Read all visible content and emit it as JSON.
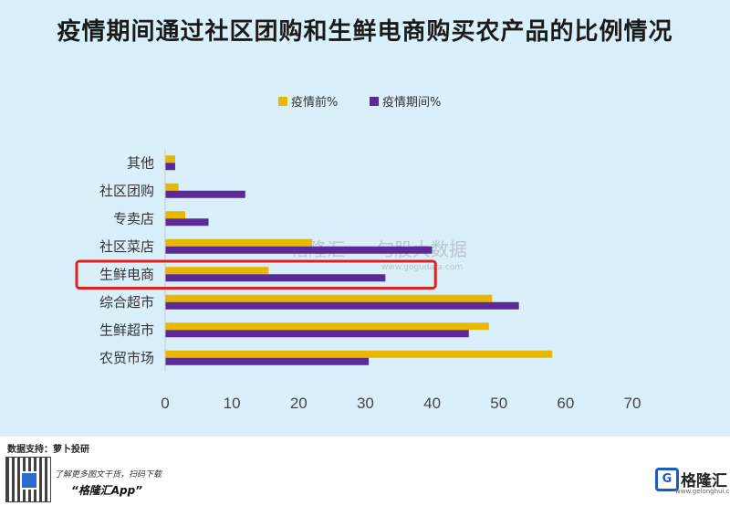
{
  "chart_data": {
    "type": "bar",
    "orientation": "horizontal",
    "title": "疫情期间通过社区团购和生鲜电商购买农产品的比例情况",
    "categories": [
      "其他",
      "社区团购",
      "专卖店",
      "社区菜店",
      "生鲜电商",
      "综合超市",
      "生鲜超市",
      "农贸市场"
    ],
    "series": [
      {
        "name": "疫情前%",
        "color": "#e8b800",
        "values": [
          1.5,
          2,
          3,
          22,
          15.5,
          49,
          48.5,
          58
        ]
      },
      {
        "name": "疫情期间%",
        "color": "#5b2a96",
        "values": [
          1.5,
          12,
          6.5,
          40,
          33,
          53,
          45.5,
          30.5
        ]
      }
    ],
    "xlim": [
      0,
      70
    ],
    "xticks": [
      0,
      10,
      20,
      30,
      40,
      50,
      60,
      70
    ],
    "legend_position": "top",
    "grid": false,
    "highlight": {
      "category": "生鲜电商",
      "color": "#e02020"
    },
    "watermark": {
      "left": "格隆汇",
      "right": "勾股大数据",
      "sub": "www.gogudata.com"
    }
  },
  "footer": {
    "source": "数据支持：萝卜投研",
    "promo": "了解更多图文干货，扫码下载",
    "app_name": "“格隆汇App”",
    "logo_mark": "G",
    "logo_text": "格隆汇",
    "logo_sub": "www.gelonghui.com"
  }
}
